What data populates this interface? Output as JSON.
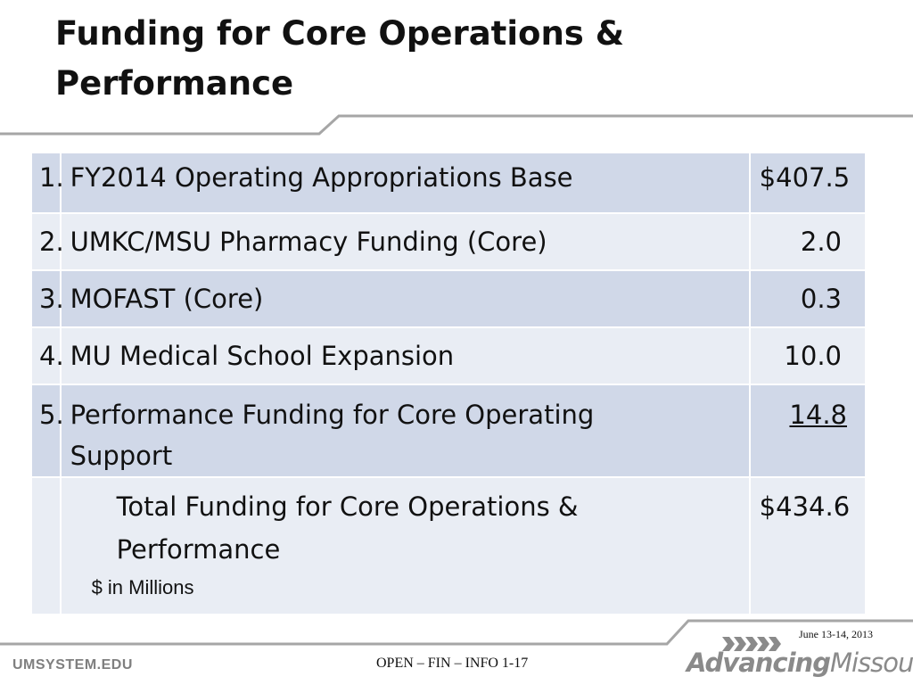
{
  "slide": {
    "title_line1": "Funding for Core Operations &",
    "title_line2": "Performance"
  },
  "table": {
    "rows": [
      {
        "num": "1.",
        "label": "FY2014 Operating Appropriations Base",
        "value": "$407.5"
      },
      {
        "num": "2.",
        "label": "UMKC/MSU Pharmacy Funding (Core)",
        "value": "2.0"
      },
      {
        "num": "3.",
        "label": "MOFAST (Core)",
        "value": "0.3"
      },
      {
        "num": "4.",
        "label": "MU Medical School Expansion",
        "value": "10.0"
      },
      {
        "num": "5.",
        "label_line1": "Performance Funding for Core Operating",
        "label_line2": "Support",
        "value": "14.8"
      }
    ],
    "total": {
      "label_line1": "Total Funding for Core Operations &",
      "label_line2": "Performance",
      "value": "$434.6",
      "note": "$ in Millions"
    }
  },
  "footer": {
    "date": "June 13-14, 2013",
    "site": "UMSYSTEM.EDU",
    "doc_id": "OPEN – FIN – INFO 1-17",
    "logo_word1": "Advancing",
    "logo_word2": "Missouri"
  },
  "colors": {
    "row_dark": "#d0d8e8",
    "row_light": "#e9edf4",
    "rule_gray": "#a6a6a6",
    "logo_gray": "#8a8a8a"
  },
  "icons": {
    "logo_mark": "chevron-arrows-icon"
  }
}
